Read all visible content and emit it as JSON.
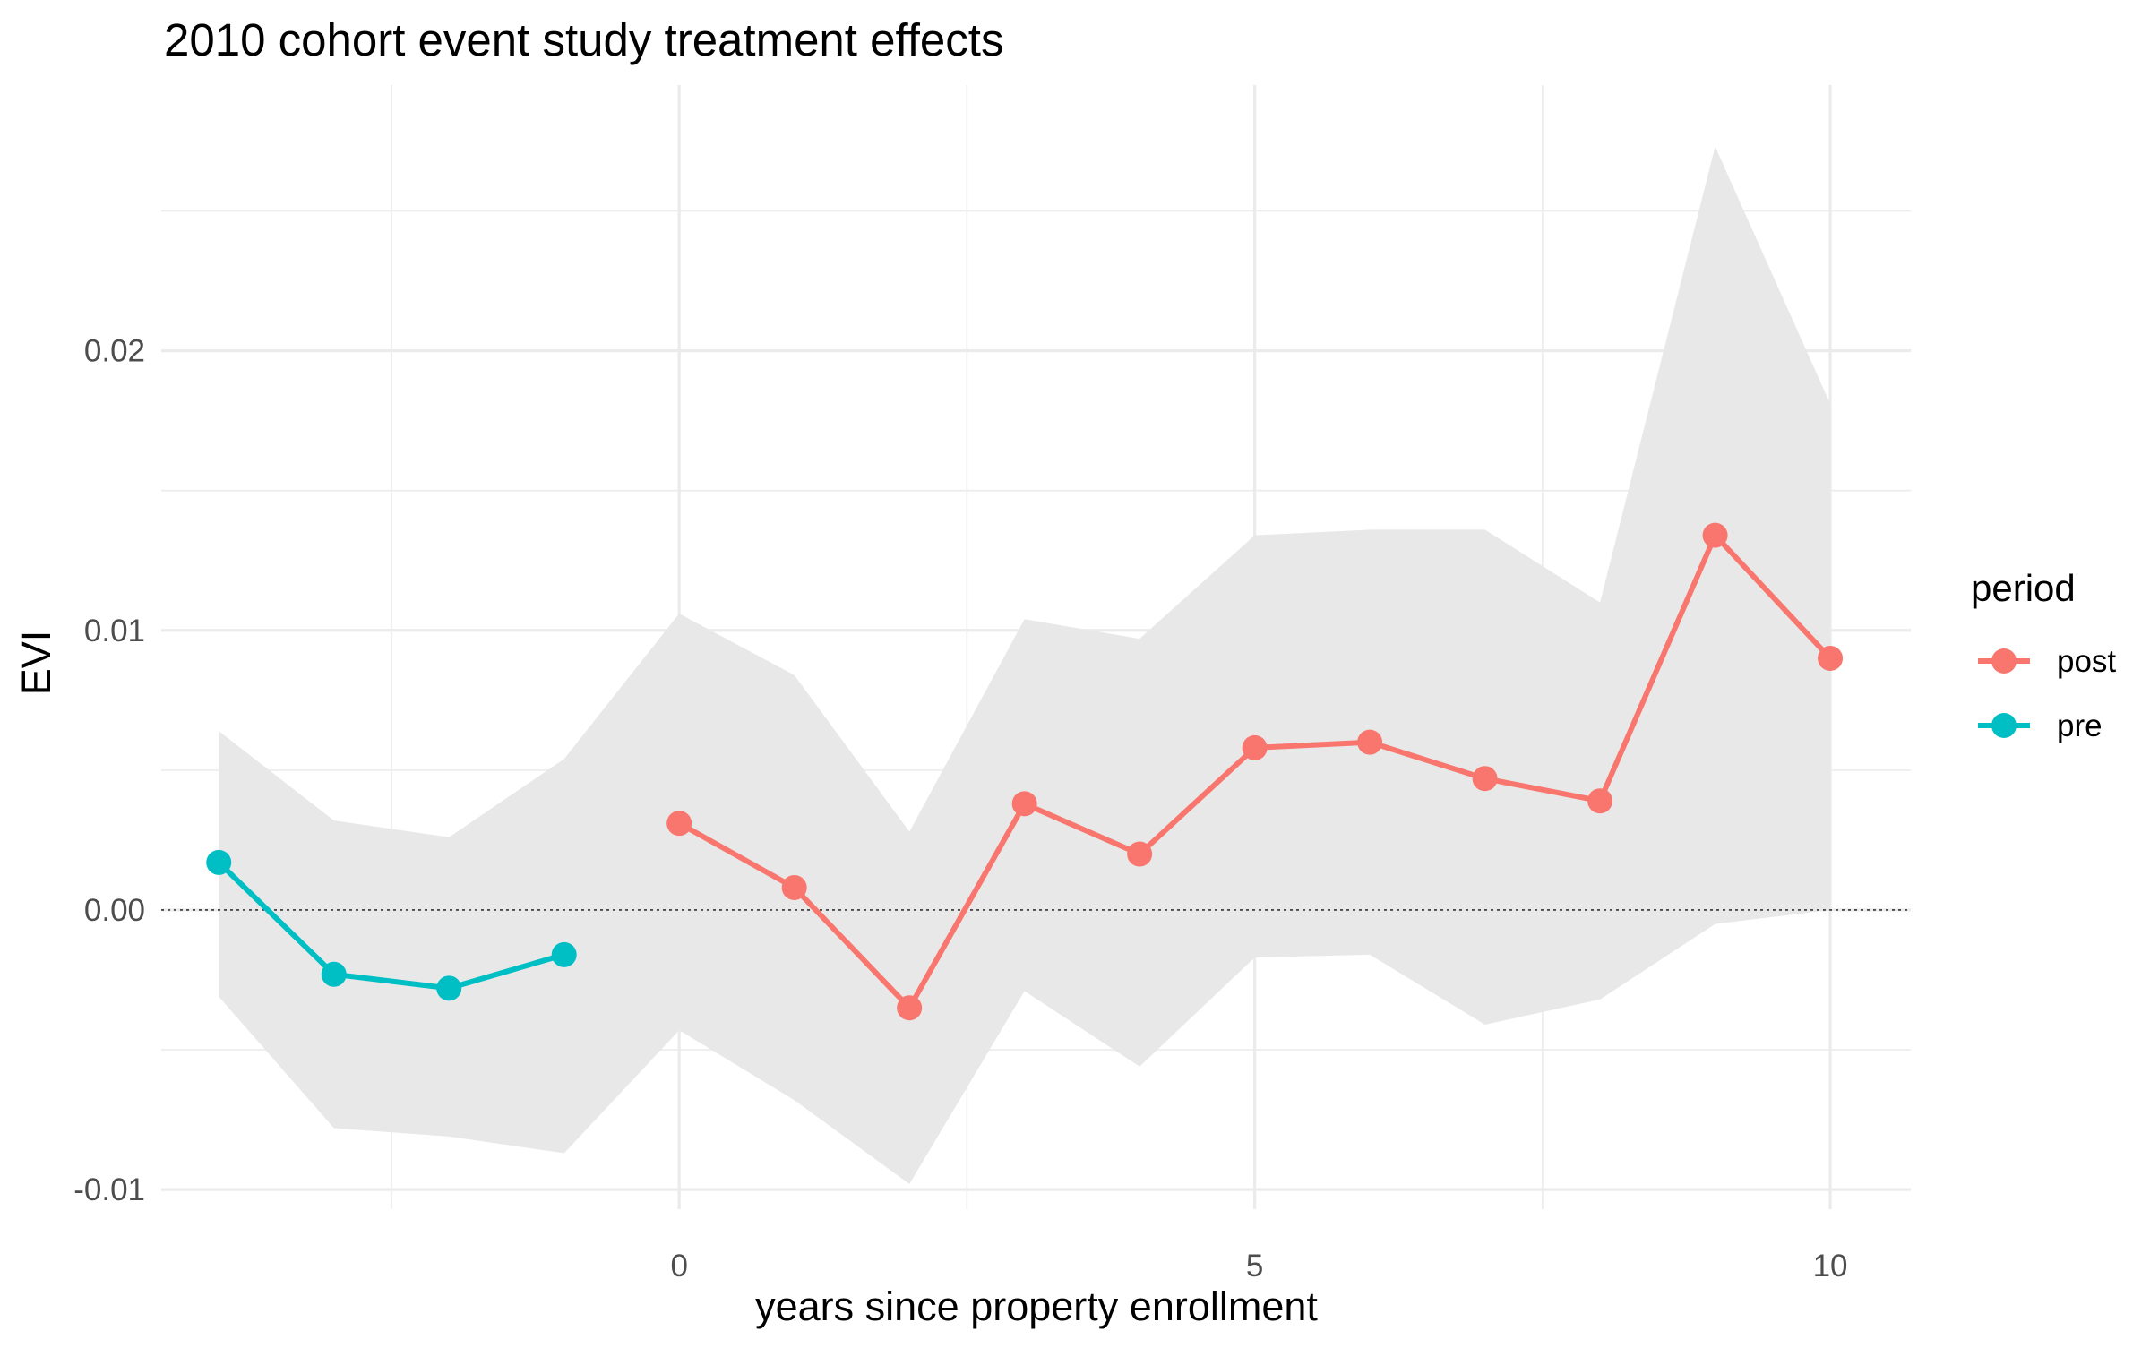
{
  "chart_data": {
    "type": "line",
    "title": "2010 cohort event study treatment effects",
    "xlabel": "years since property enrollment",
    "ylabel": "EVI",
    "xlim": [
      -4.5,
      10.7
    ],
    "ylim": [
      -0.0107,
      0.0295
    ],
    "x_ticks": [
      0,
      5,
      10
    ],
    "x_tick_labels": [
      "0",
      "5",
      "10"
    ],
    "x_minor_ticks": [
      -2.5,
      2.5,
      7.5
    ],
    "y_ticks": [
      -0.01,
      0,
      0.01,
      0.02
    ],
    "y_tick_labels": [
      "-0.01",
      "0.00",
      "0.01",
      "0.02"
    ],
    "y_minor_ticks": [
      -0.005,
      0.005,
      0.015,
      0.025
    ],
    "reference_line": {
      "y": 0,
      "style": "dotted"
    },
    "grid": true,
    "legend": {
      "title": "period",
      "position": "right",
      "entries": [
        "post",
        "pre"
      ]
    },
    "confidence_band": {
      "color": "#e8e8e8",
      "x": [
        -4,
        -3,
        -2,
        -1,
        0,
        1,
        2,
        3,
        4,
        5,
        6,
        7,
        8,
        9,
        10
      ],
      "lower": [
        -0.0031,
        -0.0078,
        -0.0081,
        -0.0087,
        -0.0043,
        -0.0068,
        -0.0098,
        -0.0029,
        -0.0056,
        -0.0017,
        -0.0016,
        -0.0041,
        -0.0032,
        -0.0005,
        0.0
      ],
      "upper": [
        0.0064,
        0.0032,
        0.0026,
        0.0054,
        0.0106,
        0.0084,
        0.0028,
        0.0104,
        0.0097,
        0.0134,
        0.0136,
        0.0136,
        0.011,
        0.0273,
        0.0181
      ]
    },
    "series": [
      {
        "name": "pre",
        "color": "#00BFC4",
        "x": [
          -4,
          -3,
          -2,
          -1
        ],
        "values": [
          0.0017,
          -0.0023,
          -0.0028,
          -0.0016
        ]
      },
      {
        "name": "post",
        "color": "#F8766D",
        "x": [
          0,
          1,
          2,
          3,
          4,
          5,
          6,
          7,
          8,
          9,
          10
        ],
        "values": [
          0.0031,
          0.0008,
          -0.0035,
          0.0038,
          0.002,
          0.0058,
          0.006,
          0.0047,
          0.0039,
          0.0134,
          0.009
        ]
      }
    ]
  }
}
